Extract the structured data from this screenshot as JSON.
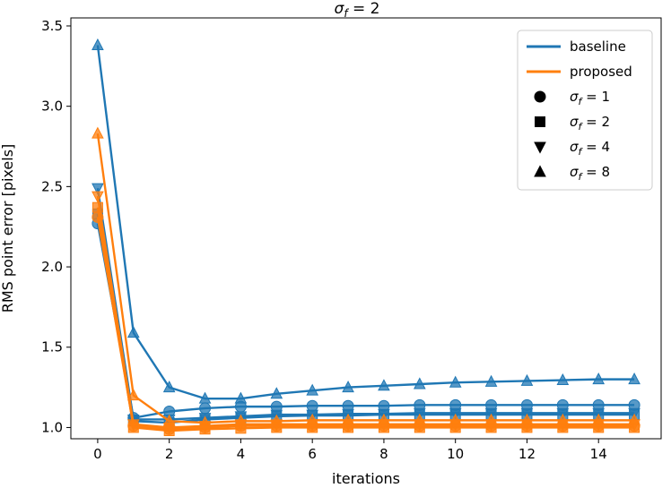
{
  "chart_data": {
    "type": "line",
    "title": "σf = 2",
    "title_parts": {
      "sym": "σ",
      "sub": "f",
      "rest": " = 2"
    },
    "xlabel": "iterations",
    "ylabel": "RMS point error [pixels]",
    "xlim": [
      -0.75,
      15.75
    ],
    "ylim": [
      0.93,
      3.55
    ],
    "xticks": [
      0,
      2,
      4,
      6,
      8,
      10,
      12,
      14
    ],
    "yticks": [
      1.0,
      1.5,
      2.0,
      2.5,
      3.0,
      3.5
    ],
    "ytick_labels": [
      "1.0",
      "1.5",
      "2.0",
      "2.5",
      "3.0",
      "3.5"
    ],
    "x": [
      0,
      1,
      2,
      3,
      4,
      5,
      6,
      7,
      8,
      9,
      10,
      11,
      12,
      13,
      14,
      15
    ],
    "colors": {
      "baseline": "#1f77b4",
      "proposed": "#ff7f0e"
    },
    "series": [
      {
        "name": "baseline σf=1",
        "method": "baseline",
        "marker": "circle",
        "values": [
          2.27,
          1.06,
          1.1,
          1.12,
          1.13,
          1.13,
          1.135,
          1.135,
          1.135,
          1.14,
          1.14,
          1.14,
          1.14,
          1.14,
          1.14,
          1.14
        ]
      },
      {
        "name": "baseline σf=2",
        "method": "baseline",
        "marker": "square",
        "values": [
          2.33,
          1.04,
          1.03,
          1.05,
          1.06,
          1.07,
          1.075,
          1.075,
          1.08,
          1.08,
          1.08,
          1.08,
          1.08,
          1.08,
          1.08,
          1.08
        ]
      },
      {
        "name": "baseline σf=4",
        "method": "baseline",
        "marker": "triangle-down",
        "values": [
          2.49,
          1.05,
          1.05,
          1.06,
          1.07,
          1.08,
          1.08,
          1.085,
          1.085,
          1.09,
          1.09,
          1.09,
          1.09,
          1.09,
          1.09,
          1.09
        ]
      },
      {
        "name": "baseline σf=8",
        "method": "baseline",
        "marker": "triangle-up",
        "values": [
          3.38,
          1.59,
          1.25,
          1.18,
          1.18,
          1.21,
          1.23,
          1.25,
          1.26,
          1.27,
          1.28,
          1.285,
          1.29,
          1.295,
          1.3,
          1.3
        ]
      },
      {
        "name": "proposed σf=1",
        "method": "proposed",
        "marker": "circle",
        "values": [
          2.31,
          1.01,
          0.99,
          1.0,
          1.01,
          1.01,
          1.01,
          1.01,
          1.01,
          1.01,
          1.01,
          1.01,
          1.01,
          1.01,
          1.01,
          1.01
        ]
      },
      {
        "name": "proposed σf=2",
        "method": "proposed",
        "marker": "square",
        "values": [
          2.37,
          1.0,
          0.98,
          0.99,
          0.995,
          1.0,
          1.0,
          1.0,
          1.0,
          1.0,
          1.0,
          1.0,
          1.0,
          1.0,
          1.0,
          1.0
        ]
      },
      {
        "name": "proposed σf=4",
        "method": "proposed",
        "marker": "triangle-down",
        "values": [
          2.44,
          1.02,
          1.0,
          1.01,
          1.02,
          1.02,
          1.02,
          1.02,
          1.02,
          1.02,
          1.02,
          1.02,
          1.02,
          1.02,
          1.02,
          1.02
        ]
      },
      {
        "name": "proposed σf=8",
        "method": "proposed",
        "marker": "triangle-up",
        "values": [
          2.83,
          1.2,
          1.04,
          1.03,
          1.04,
          1.04,
          1.045,
          1.045,
          1.045,
          1.045,
          1.045,
          1.045,
          1.045,
          1.045,
          1.045,
          1.045
        ]
      }
    ],
    "legend": {
      "position": "top-right",
      "entries": [
        {
          "label": "baseline",
          "kind": "line",
          "method": "baseline"
        },
        {
          "label": "proposed",
          "kind": "line",
          "method": "proposed"
        },
        {
          "label": "σf = 1",
          "sym": "σ",
          "sub": "f",
          "rest": " = 1",
          "kind": "marker",
          "marker": "circle"
        },
        {
          "label": "σf = 2",
          "sym": "σ",
          "sub": "f",
          "rest": " = 2",
          "kind": "marker",
          "marker": "square"
        },
        {
          "label": "σf = 4",
          "sym": "σ",
          "sub": "f",
          "rest": " = 4",
          "kind": "marker",
          "marker": "triangle-down"
        },
        {
          "label": "σf = 8",
          "sym": "σ",
          "sub": "f",
          "rest": " = 8",
          "kind": "marker",
          "marker": "triangle-up"
        }
      ]
    }
  }
}
